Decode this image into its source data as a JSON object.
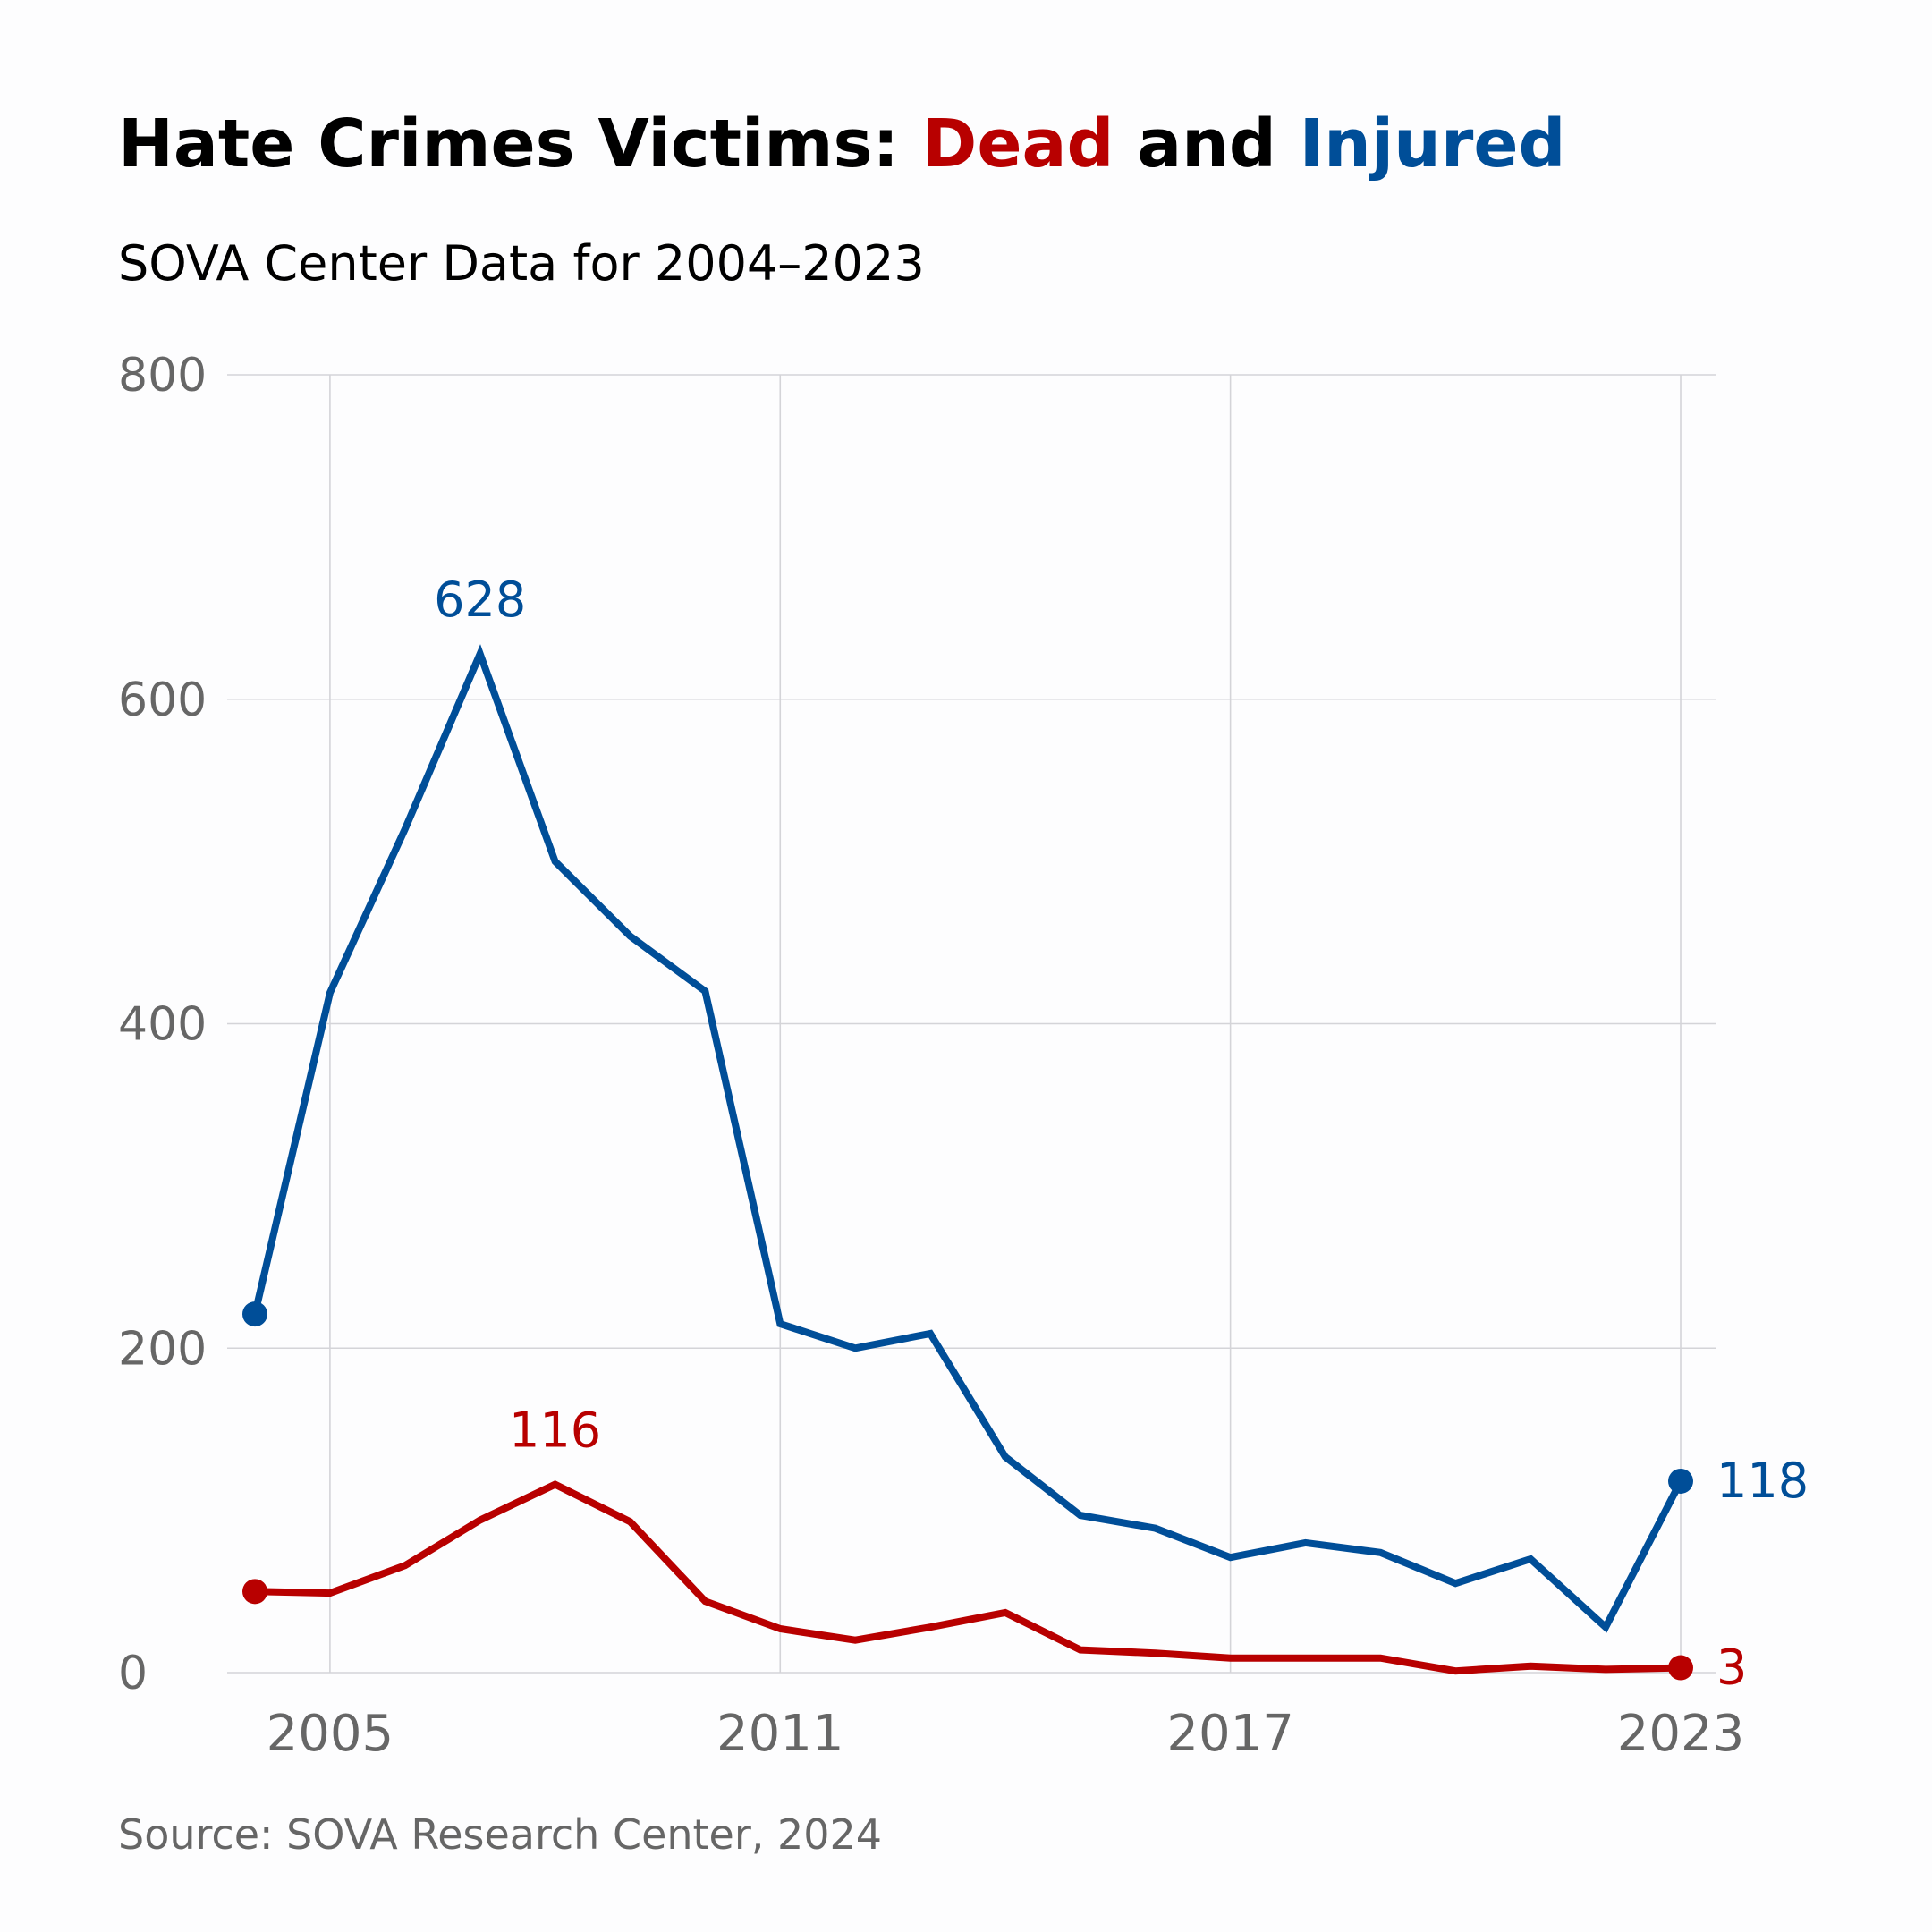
{
  "chart_data": {
    "type": "line",
    "title": {
      "parts": [
        {
          "text": "Hate Crimes Victims: ",
          "color": "#000000"
        },
        {
          "text": "Dead",
          "color": "#B80000"
        },
        {
          "text": " and ",
          "color": "#000000"
        },
        {
          "text": "Injured",
          "color": "#004E98"
        }
      ]
    },
    "subtitle": "SOVA Center Data for 2004–2023",
    "source": "Source: SOVA Research Center, 2024",
    "xlabel": "",
    "ylabel": "",
    "x": [
      2004,
      2005,
      2006,
      2007,
      2008,
      2009,
      2010,
      2011,
      2012,
      2013,
      2014,
      2015,
      2016,
      2017,
      2018,
      2019,
      2020,
      2021,
      2022,
      2023
    ],
    "xlim": [
      2004,
      2023
    ],
    "ylim": [
      0,
      800
    ],
    "xticks": [
      2005,
      2011,
      2017,
      2023
    ],
    "xtick_labels": [
      "2005",
      "2011",
      "2017",
      "2023"
    ],
    "yticks": [
      0,
      200,
      400,
      600,
      800
    ],
    "ytick_labels": [
      "0",
      "200",
      "400",
      "600",
      "800"
    ],
    "grid": true,
    "legend": "none (series identified by title colors)",
    "series": [
      {
        "name": "Injured",
        "color": "#004E98",
        "values": [
          221,
          419,
          520,
          628,
          500,
          454,
          420,
          215,
          200,
          209,
          133,
          97,
          89,
          71,
          80,
          74,
          55,
          70,
          28,
          118
        ],
        "annotations": [
          {
            "x": 2007,
            "label": "628",
            "position": "above"
          },
          {
            "x": 2023,
            "label": "118",
            "position": "right"
          }
        ],
        "endpoint_markers": [
          2004,
          2023
        ]
      },
      {
        "name": "Dead",
        "color": "#B80000",
        "values": [
          50,
          49,
          66,
          94,
          116,
          93,
          44,
          27,
          20,
          28,
          37,
          14,
          12,
          9,
          9,
          9,
          1,
          4,
          2,
          3
        ],
        "annotations": [
          {
            "x": 2008,
            "label": "116",
            "position": "above"
          },
          {
            "x": 2023,
            "label": "3",
            "position": "right"
          }
        ],
        "endpoint_markers": [
          2004,
          2023
        ]
      }
    ]
  }
}
